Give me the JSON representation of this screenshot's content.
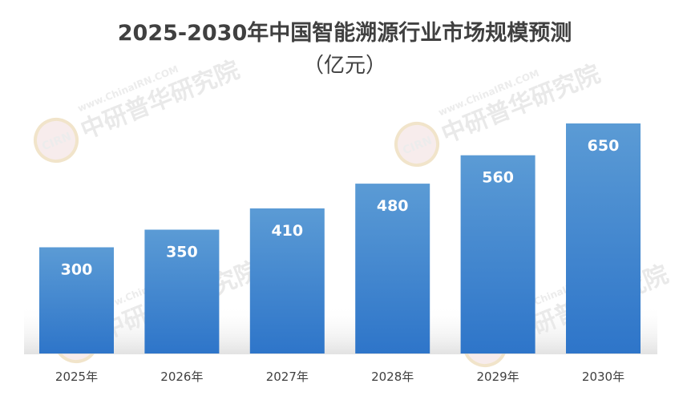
{
  "chart_data": {
    "type": "bar",
    "title": "2025-2030年中国智能溯源行业市场规模预测",
    "subtitle": "（亿元）",
    "categories": [
      "2025年",
      "2026年",
      "2027年",
      "2028年",
      "2029年",
      "2030年"
    ],
    "values": [
      300,
      350,
      410,
      480,
      560,
      650
    ],
    "ylim": [
      0,
      700
    ],
    "grid": false,
    "legend": "none",
    "bar_color_top": "#5b9bd5",
    "bar_color_bottom": "#2e75c9",
    "data_labels": [
      "300",
      "350",
      "410",
      "480",
      "560",
      "650"
    ]
  },
  "watermark": {
    "logo_text": "CIRN",
    "brand_text": "中研普华研究院",
    "url_text": "www.ChinaIRN.COM"
  }
}
